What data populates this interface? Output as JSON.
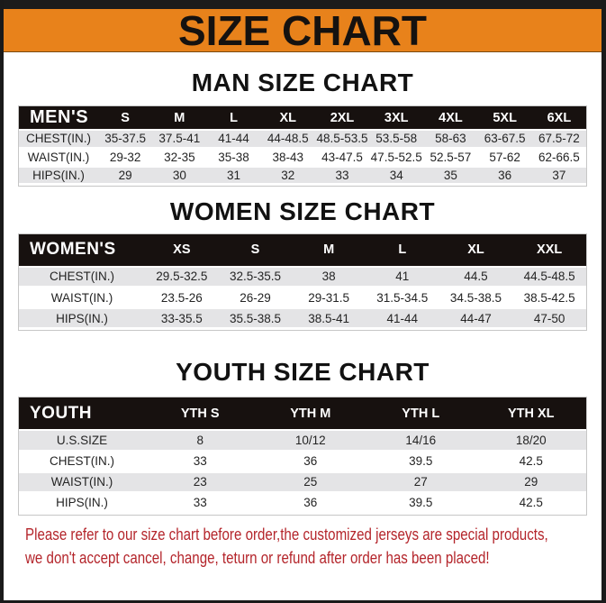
{
  "page": {
    "title": "SIZE CHART"
  },
  "colors": {
    "banner_orange": "#e8821b",
    "header_black": "#17110f",
    "row_gray": "#e4e4e6",
    "footer_red": "#b4252b"
  },
  "sections": [
    {
      "heading": "MAN SIZE CHART",
      "table": {
        "corner_label": "MEN'S",
        "columns": [
          "S",
          "M",
          "L",
          "XL",
          "2XL",
          "3XL",
          "4XL",
          "5XL",
          "6XL"
        ],
        "rows": [
          {
            "label": "CHEST(IN.)",
            "values": [
              "35-37.5",
              "37.5-41",
              "41-44",
              "44-48.5",
              "48.5-53.5",
              "53.5-58",
              "58-63",
              "63-67.5",
              "67.5-72"
            ]
          },
          {
            "label": "WAIST(IN.)",
            "values": [
              "29-32",
              "32-35",
              "35-38",
              "38-43",
              "43-47.5",
              "47.5-52.5",
              "52.5-57",
              "57-62",
              "62-66.5"
            ]
          },
          {
            "label": "HIPS(IN.)",
            "values": [
              "29",
              "30",
              "31",
              "32",
              "33",
              "34",
              "35",
              "36",
              "37"
            ]
          }
        ]
      }
    },
    {
      "heading": "WOMEN SIZE CHART",
      "table": {
        "corner_label": "WOMEN'S",
        "columns": [
          "XS",
          "S",
          "M",
          "L",
          "XL",
          "XXL"
        ],
        "rows": [
          {
            "label": "CHEST(IN.)",
            "values": [
              "29.5-32.5",
              "32.5-35.5",
              "38",
              "41",
              "44.5",
              "44.5-48.5"
            ]
          },
          {
            "label": "WAIST(IN.)",
            "values": [
              "23.5-26",
              "26-29",
              "29-31.5",
              "31.5-34.5",
              "34.5-38.5",
              "38.5-42.5"
            ]
          },
          {
            "label": "HIPS(IN.)",
            "values": [
              "33-35.5",
              "35.5-38.5",
              "38.5-41",
              "41-44",
              "44-47",
              "47-50"
            ]
          }
        ]
      }
    },
    {
      "heading": "YOUTH SIZE CHART",
      "table": {
        "corner_label": "YOUTH",
        "columns": [
          "YTH S",
          "YTH M",
          "YTH L",
          "YTH XL"
        ],
        "rows": [
          {
            "label": "U.S.SIZE",
            "values": [
              "8",
              "10/12",
              "14/16",
              "18/20"
            ]
          },
          {
            "label": "CHEST(IN.)",
            "values": [
              "33",
              "36",
              "39.5",
              "42.5"
            ]
          },
          {
            "label": "WAIST(IN.)",
            "values": [
              "23",
              "25",
              "27",
              "29"
            ]
          },
          {
            "label": "HIPS(IN.)",
            "values": [
              "33",
              "36",
              "39.5",
              "42.5"
            ]
          }
        ]
      }
    }
  ],
  "footer": {
    "line1": "Please refer to our size chart before order,the customized jerseys are special products,",
    "line2": "we don't accept cancel, change, teturn or refund after order has been placed!"
  }
}
